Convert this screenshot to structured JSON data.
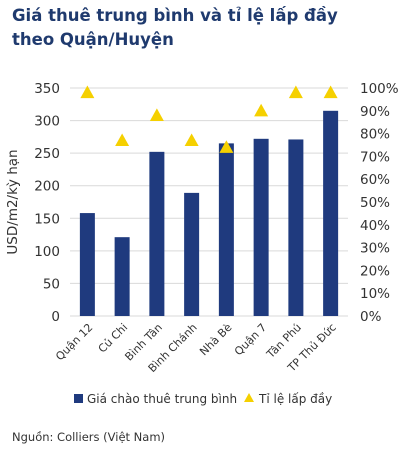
{
  "title_line1": "Giá thuê trung bình và tỉ lệ lấp đầy",
  "title_line2": "theo Quận/Huyện",
  "source": "Nguồn: Colliers (Việt Nam)",
  "chart_data": {
    "type": "bar",
    "categories": [
      "Quận 12",
      "Củ Chi",
      "Bình Tân",
      "Bình Chánh",
      "Nhà Bè",
      "Quận 7",
      "Tân Phú",
      "TP Thủ Đức"
    ],
    "series": [
      {
        "name": "Giá chào thuê trung bình",
        "type": "bar",
        "axis": "left",
        "values": [
          158,
          121,
          252,
          189,
          265,
          272,
          271,
          315
        ]
      },
      {
        "name": "Tỉ lệ lấp đầy",
        "type": "scatter",
        "axis": "right",
        "marker": "triangle",
        "values": [
          0.98,
          0.77,
          0.88,
          0.77,
          0.74,
          0.9,
          0.98,
          0.98
        ]
      }
    ],
    "ylabel": "USD/m2/kỳ hạn",
    "ylim": [
      0,
      350
    ],
    "yticks": [
      "0",
      "50",
      "100",
      "150",
      "200",
      "250",
      "300",
      "350"
    ],
    "y2lim": [
      0,
      1
    ],
    "y2ticks": [
      "0%",
      "10%",
      "20%",
      "30%",
      "40%",
      "50%",
      "60%",
      "70%",
      "80%",
      "90%",
      "100%"
    ],
    "legend_position": "bottom",
    "colors": {
      "bar": "#1f3a7e",
      "marker": "#f5d000",
      "title": "#1f3a6e"
    }
  }
}
